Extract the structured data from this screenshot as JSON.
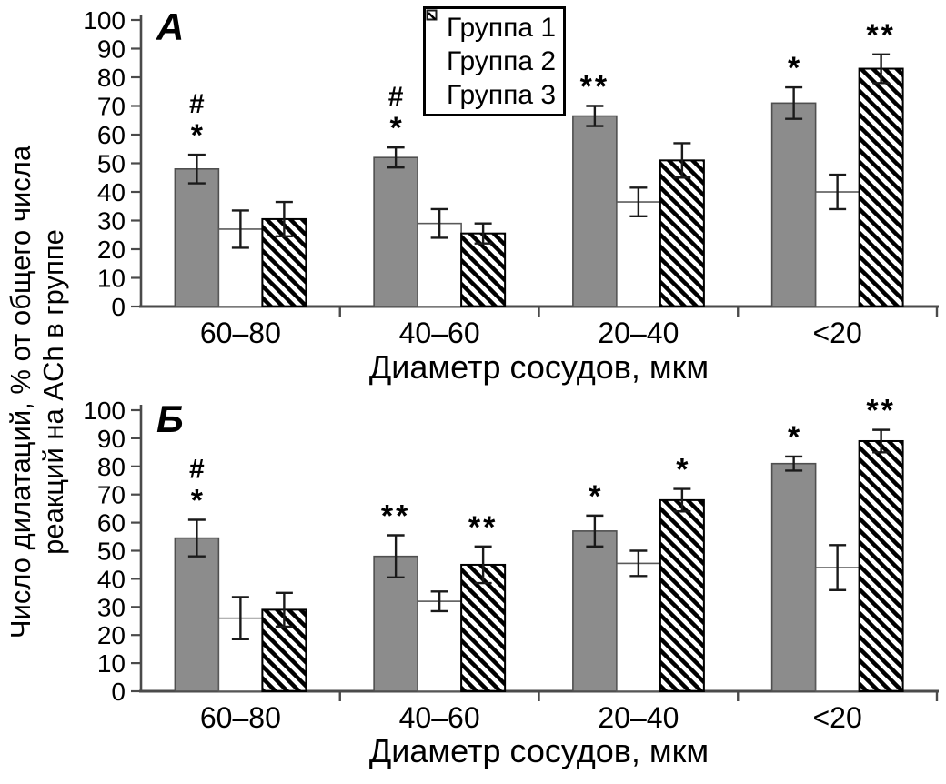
{
  "figure": {
    "y_axis_title_line1": "Число дилатаций, % от общего числа",
    "y_axis_title_line2": "реакций на ACh в группе"
  },
  "legend": {
    "items": [
      {
        "label": "Группа 1",
        "swatch": "solid-gray"
      },
      {
        "label": "Группа 2",
        "swatch": "white"
      },
      {
        "label": "Группа 3",
        "swatch": "hatched"
      }
    ]
  },
  "colors": {
    "background": "#ffffff",
    "text": "#000000",
    "axis": "#4a4a4a",
    "error_bar": "#1a1a1a",
    "bar_gray": "#8c8c8c",
    "bar_gray_border": "#4f4f4f",
    "bar_white": "#ffffff",
    "bar_white_border": "#595959",
    "hatch_stroke": "#000000"
  },
  "chart_data": [
    {
      "type": "bar",
      "panel_label": "А",
      "xlabel": "Диаметр сосудов, мкм",
      "ylabel": "Число дилатаций, % от общего числа реакций на ACh в группе",
      "categories": [
        "60–80",
        "40–60",
        "20–40",
        "<20"
      ],
      "ylim": [
        0,
        100
      ],
      "ytick_step": 10,
      "grid": false,
      "legend_position": "top-center",
      "series": [
        {
          "name": "Группа 1",
          "style": "solid-gray",
          "values": [
            48,
            52,
            66.5,
            71
          ],
          "errors": [
            5,
            3.5,
            3.5,
            5.5
          ],
          "annotations": [
            [
              "#",
              "*"
            ],
            [
              "#",
              "*"
            ],
            [
              "**"
            ],
            [
              "*"
            ]
          ]
        },
        {
          "name": "Группа 2",
          "style": "white",
          "values": [
            27,
            29,
            36.5,
            40
          ],
          "errors": [
            6.5,
            5,
            5,
            6
          ],
          "annotations": [
            [],
            [],
            [],
            []
          ]
        },
        {
          "name": "Группа 3",
          "style": "hatched",
          "values": [
            30.5,
            25.5,
            51,
            83
          ],
          "errors": [
            6,
            3.5,
            6,
            5
          ],
          "annotations": [
            [],
            [],
            [],
            [
              "**"
            ]
          ]
        }
      ]
    },
    {
      "type": "bar",
      "panel_label": "Б",
      "xlabel": "Диаметр сосудов, мкм",
      "ylabel": "Число дилатаций, % от общего числа реакций на ACh в группе",
      "categories": [
        "60–80",
        "40–60",
        "20–40",
        "<20"
      ],
      "ylim": [
        0,
        100
      ],
      "ytick_step": 10,
      "grid": false,
      "legend_position": "none",
      "series": [
        {
          "name": "Группа 1",
          "style": "solid-gray",
          "values": [
            54.5,
            48,
            57,
            81
          ],
          "errors": [
            6.5,
            7.5,
            5.5,
            2.5
          ],
          "annotations": [
            [
              "#",
              "*"
            ],
            [
              "**"
            ],
            [
              "*"
            ],
            [
              "*"
            ]
          ]
        },
        {
          "name": "Группа 2",
          "style": "white",
          "values": [
            26,
            32,
            45.5,
            44
          ],
          "errors": [
            7.5,
            3.5,
            4.5,
            8
          ],
          "annotations": [
            [],
            [],
            [],
            []
          ]
        },
        {
          "name": "Группа 3",
          "style": "hatched",
          "values": [
            29,
            45,
            68,
            89
          ],
          "errors": [
            6,
            6.5,
            4,
            4
          ],
          "annotations": [
            [],
            [
              "**"
            ],
            [
              "*"
            ],
            [
              "**"
            ]
          ]
        }
      ]
    }
  ]
}
